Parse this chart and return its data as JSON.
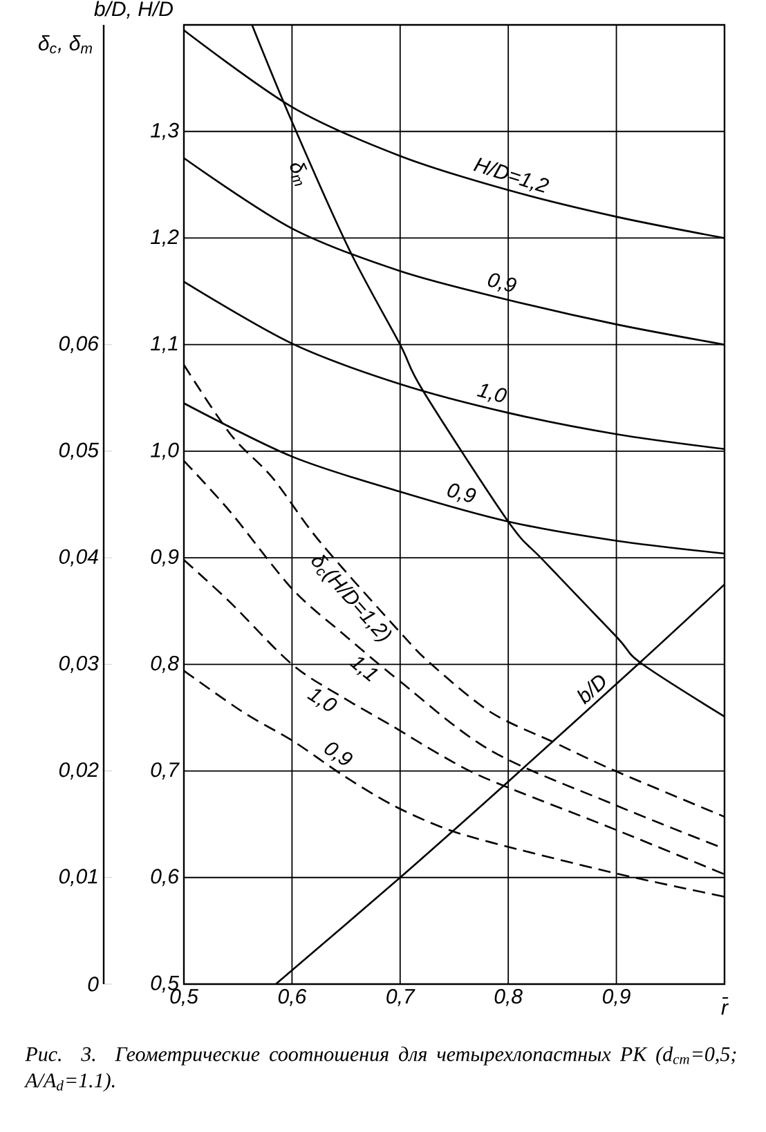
{
  "chart_data": {
    "type": "line",
    "xlabel": "r̄",
    "ylabel": "b/D, H/D",
    "y2label": "δ$_{c}$, δ$_{m}$",
    "xlim": [
      0.5,
      1.0
    ],
    "ylim": [
      0.5,
      1.4
    ],
    "y2lim": [
      0,
      0.09
    ],
    "xticks": [
      {
        "value": 0.5,
        "label": "0,5"
      },
      {
        "value": 0.6,
        "label": "0,6"
      },
      {
        "value": 0.7,
        "label": "0,7"
      },
      {
        "value": 0.8,
        "label": "0,8"
      },
      {
        "value": 0.9,
        "label": "0,9"
      }
    ],
    "yticks": [
      {
        "value": 0.5,
        "label": "0,5"
      },
      {
        "value": 0.6,
        "label": "0,6"
      },
      {
        "value": 0.7,
        "label": "0,7"
      },
      {
        "value": 0.8,
        "label": "0,8"
      },
      {
        "value": 0.9,
        "label": "0,9"
      },
      {
        "value": 1.0,
        "label": "1,0"
      },
      {
        "value": 1.1,
        "label": "1,1"
      },
      {
        "value": 1.2,
        "label": "1,2"
      },
      {
        "value": 1.3,
        "label": "1,3"
      }
    ],
    "y2ticks": [
      0,
      {
        "value": 0.01,
        "label": "0,01"
      },
      {
        "value": 0.02,
        "label": "0,02"
      },
      {
        "value": 0.03,
        "label": "0,03"
      },
      {
        "value": 0.04,
        "label": "0,04"
      },
      {
        "value": 0.05,
        "label": "0,05"
      },
      {
        "value": 0.06,
        "label": "0,06"
      }
    ],
    "grid": true,
    "series": [
      {
        "name": "H/D=1,2",
        "color": "#000000",
        "x": [
          0.5,
          0.6,
          0.7,
          0.8,
          0.9,
          1.0
        ],
        "values": [
          1.395,
          1.323,
          1.277,
          1.245,
          1.22,
          1.2
        ]
      },
      {
        "name": "0,9",
        "color": "#000000",
        "x": [
          0.5,
          0.6,
          0.7,
          0.8,
          0.9,
          1.0
        ],
        "values": [
          1.275,
          1.209,
          1.169,
          1.142,
          1.119,
          1.1
        ]
      },
      {
        "name": "1,0",
        "color": "#000000",
        "x": [
          0.5,
          0.6,
          0.7,
          0.8,
          0.9,
          1.0
        ],
        "values": [
          1.159,
          1.101,
          1.063,
          1.036,
          1.016,
          1.002
        ]
      },
      {
        "name": "0,9",
        "color": "#000000",
        "x": [
          0.5,
          0.6,
          0.7,
          0.8,
          0.9,
          1.0
        ],
        "values": [
          1.045,
          0.995,
          0.962,
          0.934,
          0.916,
          0.904
        ]
      },
      {
        "name": "δ$_{m}$",
        "color": "#000000",
        "axis": "y2",
        "x": [
          0.563,
          0.6,
          0.653,
          0.7,
          0.721,
          0.8,
          0.832,
          0.9,
          0.923,
          1.0
        ],
        "values": [
          0.09,
          0.0809,
          0.0689,
          0.06,
          0.0557,
          0.0434,
          0.0398,
          0.0326,
          0.0301,
          0.0251
        ]
      },
      {
        "name": "b/D",
        "color": "#000000",
        "x": [
          0.585,
          0.7,
          0.8,
          0.92,
          1.0
        ],
        "values": [
          0.5,
          0.6,
          0.69,
          0.8,
          0.875
        ]
      },
      {
        "name": "δ$_{c}$(H/D=1,2)",
        "color": "#000000",
        "axis": "y2",
        "line_style": "dashed",
        "x": [
          0.5,
          0.543,
          0.582,
          0.625,
          0.7,
          0.729,
          0.784,
          0.844,
          0.899,
          1.0
        ],
        "values": [
          0.0581,
          0.0516,
          0.0475,
          0.0416,
          0.033,
          0.03,
          0.0255,
          0.0226,
          0.02,
          0.0157
        ]
      },
      {
        "name": "1,1",
        "color": "#000000",
        "axis": "y2",
        "line_style": "dashed",
        "x": [
          0.5,
          0.543,
          0.6,
          0.648,
          0.7,
          0.784,
          0.899,
          1.0
        ],
        "values": [
          0.0491,
          0.0443,
          0.0371,
          0.0328,
          0.0284,
          0.0219,
          0.0168,
          0.0127
        ]
      },
      {
        "name": "1,0",
        "color": "#000000",
        "axis": "y2",
        "line_style": "dashed",
        "x": [
          0.5,
          0.543,
          0.6,
          0.647,
          0.693,
          0.739,
          0.784,
          0.899,
          1.0
        ],
        "values": [
          0.0398,
          0.0358,
          0.03,
          0.0269,
          0.0242,
          0.0214,
          0.0191,
          0.0145,
          0.0103
        ]
      },
      {
        "name": "0,9",
        "color": "#000000",
        "axis": "y2",
        "line_style": "dashed",
        "x": [
          0.5,
          0.555,
          0.601,
          0.647,
          0.693,
          0.739,
          0.784,
          0.899,
          1.0
        ],
        "values": [
          0.0294,
          0.0255,
          0.0228,
          0.0196,
          0.0168,
          0.0147,
          0.0133,
          0.0104,
          0.0082
        ]
      }
    ],
    "annotations": [
      "Рис. 3. Геометрические соотношения для четырехлопастных РК (d$_{ст}$=0,5; A/A$_{d}$=1.1)."
    ]
  }
}
